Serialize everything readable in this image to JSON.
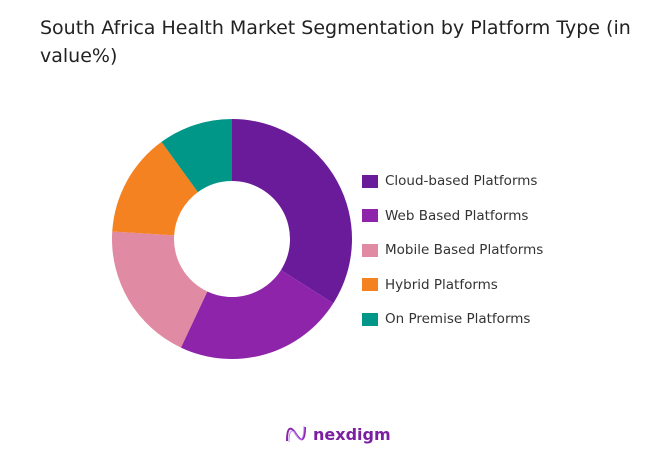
{
  "chart_data": {
    "type": "pie",
    "variant": "donut",
    "title": "South Africa Health Market Segmentation by Platform Type (in value%)",
    "categories": [
      "Cloud-based Platforms",
      "Web Based Platforms",
      "Mobile Based Platforms",
      "Hybrid Platforms",
      "On Premise Platforms"
    ],
    "values": [
      34,
      23,
      19,
      14,
      10
    ],
    "colors": [
      "#6a1b9a",
      "#8e24aa",
      "#e08aa3",
      "#f58220",
      "#009688"
    ],
    "legend_position": "right"
  },
  "brand": {
    "name": "nexdigm"
  }
}
